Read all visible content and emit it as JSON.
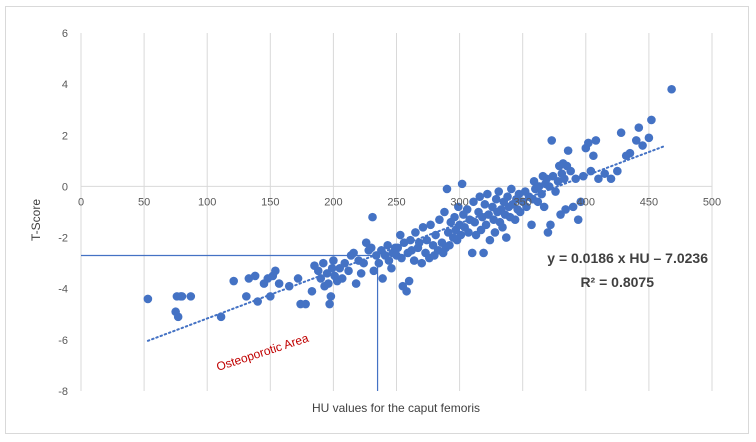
{
  "chart_data": {
    "type": "scatter",
    "xlabel": "HU values for the caput femoris",
    "ylabel": "T-Score",
    "xlim": [
      0,
      500
    ],
    "ylim": [
      -8,
      6
    ],
    "x_ticks": [
      0,
      50,
      100,
      150,
      200,
      250,
      300,
      350,
      400,
      450,
      500
    ],
    "y_ticks": [
      6,
      4,
      2,
      0,
      -2,
      -4,
      -6,
      -8
    ],
    "grid": "vertical",
    "point_color": "#4472c4",
    "trendline": {
      "slope": 0.0186,
      "intercept": -7.0236,
      "x_range": [
        53,
        462
      ],
      "style": "dotted",
      "color": "#4472c4"
    },
    "equation_label": "y = 0.0186 x HU – 7.0236",
    "r2_label": "R² = 0.8075",
    "region_label": "Osteoporotic Area",
    "threshold": {
      "t_score": -2.7,
      "hu": 235
    },
    "points": [
      [
        53,
        -4.4
      ],
      [
        75,
        -4.9
      ],
      [
        76,
        -4.3
      ],
      [
        77,
        -5.1
      ],
      [
        79,
        -4.3
      ],
      [
        80,
        -4.3
      ],
      [
        87,
        -4.3
      ],
      [
        111,
        -5.1
      ],
      [
        121,
        -3.7
      ],
      [
        131,
        -4.3
      ],
      [
        133,
        -3.6
      ],
      [
        138,
        -3.5
      ],
      [
        140,
        -4.5
      ],
      [
        145,
        -3.8
      ],
      [
        148,
        -3.6
      ],
      [
        150,
        -4.3
      ],
      [
        152,
        -3.5
      ],
      [
        154,
        -3.3
      ],
      [
        157,
        -3.8
      ],
      [
        165,
        -3.9
      ],
      [
        172,
        -3.6
      ],
      [
        174,
        -4.6
      ],
      [
        178,
        -4.6
      ],
      [
        183,
        -4.1
      ],
      [
        185,
        -3.1
      ],
      [
        188,
        -3.3
      ],
      [
        190,
        -3.6
      ],
      [
        192,
        -3.0
      ],
      [
        193,
        -3.9
      ],
      [
        195,
        -3.4
      ],
      [
        196,
        -3.8
      ],
      [
        197,
        -4.6
      ],
      [
        198,
        -4.3
      ],
      [
        199,
        -3.2
      ],
      [
        200,
        -2.9
      ],
      [
        201,
        -3.5
      ],
      [
        203,
        -3.7
      ],
      [
        205,
        -3.2
      ],
      [
        207,
        -3.6
      ],
      [
        209,
        -3.0
      ],
      [
        212,
        -3.3
      ],
      [
        214,
        -2.7
      ],
      [
        216,
        -2.6
      ],
      [
        218,
        -3.8
      ],
      [
        220,
        -2.9
      ],
      [
        222,
        -3.4
      ],
      [
        224,
        -3.0
      ],
      [
        226,
        -2.2
      ],
      [
        228,
        -2.5
      ],
      [
        230,
        -2.4
      ],
      [
        231,
        -1.2
      ],
      [
        232,
        -3.3
      ],
      [
        234,
        -2.7
      ],
      [
        236,
        -3.0
      ],
      [
        238,
        -2.5
      ],
      [
        239,
        -3.6
      ],
      [
        241,
        -2.7
      ],
      [
        243,
        -2.3
      ],
      [
        244,
        -2.9
      ],
      [
        246,
        -3.2
      ],
      [
        247,
        -2.6
      ],
      [
        249,
        -2.4
      ],
      [
        250,
        -2.7
      ],
      [
        251,
        -2.4
      ],
      [
        253,
        -1.9
      ],
      [
        254,
        -2.8
      ],
      [
        255,
        -3.9
      ],
      [
        256,
        -2.2
      ],
      [
        258,
        -4.1
      ],
      [
        259,
        -2.6
      ],
      [
        260,
        -3.7
      ],
      [
        261,
        -2.1
      ],
      [
        262,
        -2.5
      ],
      [
        264,
        -2.9
      ],
      [
        265,
        -1.8
      ],
      [
        267,
        -2.4
      ],
      [
        268,
        -2.2
      ],
      [
        270,
        -3.0
      ],
      [
        271,
        -1.6
      ],
      [
        273,
        -2.6
      ],
      [
        274,
        -2.1
      ],
      [
        276,
        -2.8
      ],
      [
        277,
        -1.5
      ],
      [
        279,
        -2.3
      ],
      [
        280,
        -2.7
      ],
      [
        281,
        -1.9
      ],
      [
        283,
        -2.5
      ],
      [
        284,
        -1.3
      ],
      [
        286,
        -2.2
      ],
      [
        287,
        -2.6
      ],
      [
        288,
        -1.0
      ],
      [
        289,
        -2.4
      ],
      [
        290,
        -0.1
      ],
      [
        291,
        -1.8
      ],
      [
        292,
        -2.3
      ],
      [
        293,
        -1.4
      ],
      [
        295,
        -2.0
      ],
      [
        296,
        -1.2
      ],
      [
        297,
        -1.7
      ],
      [
        298,
        -2.1
      ],
      [
        299,
        -0.8
      ],
      [
        300,
        -1.5
      ],
      [
        301,
        -1.9
      ],
      [
        302,
        0.1
      ],
      [
        303,
        -1.1
      ],
      [
        304,
        -1.6
      ],
      [
        306,
        -0.9
      ],
      [
        307,
        -1.8
      ],
      [
        308,
        -1.3
      ],
      [
        310,
        -2.6
      ],
      [
        311,
        -0.6
      ],
      [
        312,
        -1.4
      ],
      [
        313,
        -1.9
      ],
      [
        315,
        -1.0
      ],
      [
        316,
        -0.4
      ],
      [
        317,
        -1.7
      ],
      [
        318,
        -1.2
      ],
      [
        319,
        -2.6
      ],
      [
        320,
        -0.7
      ],
      [
        321,
        -1.5
      ],
      [
        322,
        -0.3
      ],
      [
        323,
        -1.1
      ],
      [
        324,
        -2.1
      ],
      [
        326,
        -0.8
      ],
      [
        327,
        -1.3
      ],
      [
        328,
        -1.8
      ],
      [
        329,
        -0.5
      ],
      [
        330,
        -1.0
      ],
      [
        331,
        -0.2
      ],
      [
        332,
        -1.4
      ],
      [
        333,
        -0.9
      ],
      [
        334,
        -1.6
      ],
      [
        335,
        -0.6
      ],
      [
        336,
        -1.1
      ],
      [
        337,
        -2.0
      ],
      [
        338,
        -0.4
      ],
      [
        339,
        -0.8
      ],
      [
        340,
        -1.2
      ],
      [
        341,
        -0.1
      ],
      [
        342,
        -0.7
      ],
      [
        344,
        -1.3
      ],
      [
        345,
        -0.5
      ],
      [
        346,
        -0.9
      ],
      [
        347,
        -0.3
      ],
      [
        348,
        -1.0
      ],
      [
        350,
        -0.6
      ],
      [
        352,
        -0.2
      ],
      [
        353,
        -0.8
      ],
      [
        355,
        -0.4
      ],
      [
        357,
        -1.5
      ],
      [
        358,
        -0.5
      ],
      [
        359,
        0.2
      ],
      [
        360,
        -0.1
      ],
      [
        362,
        -0.6
      ],
      [
        363,
        0.0
      ],
      [
        365,
        -0.3
      ],
      [
        366,
        0.4
      ],
      [
        367,
        -0.8
      ],
      [
        368,
        0.1
      ],
      [
        369,
        0.3
      ],
      [
        370,
        -1.8
      ],
      [
        371,
        0.0
      ],
      [
        372,
        -1.5
      ],
      [
        373,
        1.8
      ],
      [
        374,
        0.4
      ],
      [
        376,
        -0.2
      ],
      [
        378,
        0.2
      ],
      [
        379,
        0.8
      ],
      [
        380,
        -1.1
      ],
      [
        381,
        0.5
      ],
      [
        382,
        0.9
      ],
      [
        383,
        0.3
      ],
      [
        384,
        -0.9
      ],
      [
        385,
        0.8
      ],
      [
        386,
        1.4
      ],
      [
        388,
        0.6
      ],
      [
        390,
        -0.8
      ],
      [
        392,
        0.3
      ],
      [
        394,
        -1.3
      ],
      [
        396,
        -0.6
      ],
      [
        398,
        0.4
      ],
      [
        400,
        1.5
      ],
      [
        402,
        1.7
      ],
      [
        404,
        0.6
      ],
      [
        406,
        1.2
      ],
      [
        408,
        1.8
      ],
      [
        410,
        0.3
      ],
      [
        415,
        0.5
      ],
      [
        420,
        0.3
      ],
      [
        425,
        0.6
      ],
      [
        428,
        2.1
      ],
      [
        432,
        1.2
      ],
      [
        435,
        1.3
      ],
      [
        440,
        1.8
      ],
      [
        442,
        2.3
      ],
      [
        445,
        1.6
      ],
      [
        450,
        1.9
      ],
      [
        452,
        2.6
      ],
      [
        468,
        3.8
      ]
    ]
  }
}
